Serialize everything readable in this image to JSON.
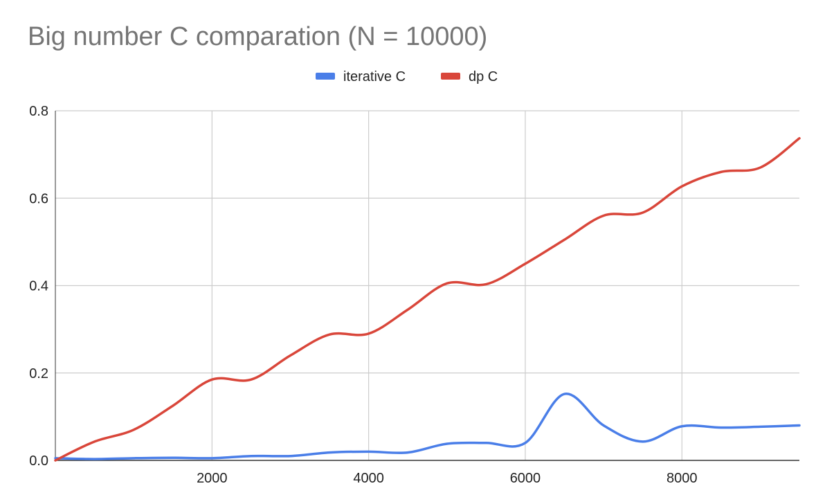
{
  "chart_data": {
    "type": "line",
    "title": "Big number C comparation (N = 10000)",
    "xlabel": "",
    "ylabel": "",
    "xlim": [
      0,
      9500
    ],
    "ylim": [
      0,
      0.8
    ],
    "x_ticks": [
      2000,
      4000,
      6000,
      8000
    ],
    "y_ticks": [
      0.0,
      0.2,
      0.4,
      0.6,
      0.8
    ],
    "x_tick_labels": [
      "2000",
      "4000",
      "6000",
      "8000"
    ],
    "y_tick_labels": [
      "0.0",
      "0.2",
      "0.4",
      "0.6",
      "0.8"
    ],
    "grid": true,
    "legend_position": "top-center",
    "x": [
      0,
      500,
      1000,
      1500,
      2000,
      2500,
      3000,
      3500,
      4000,
      4500,
      5000,
      5500,
      6000,
      6500,
      7000,
      7500,
      8000,
      8500,
      9000,
      9500
    ],
    "series": [
      {
        "name": "iterative C",
        "color": "#4a7ee8",
        "values": [
          0.005,
          0.003,
          0.005,
          0.006,
          0.005,
          0.01,
          0.01,
          0.018,
          0.02,
          0.018,
          0.038,
          0.04,
          0.04,
          0.152,
          0.08,
          0.043,
          0.078,
          0.075,
          0.077,
          0.08
        ]
      },
      {
        "name": "dp C",
        "color": "#d9463a",
        "values": [
          0.0,
          0.043,
          0.07,
          0.125,
          0.185,
          0.185,
          0.24,
          0.288,
          0.29,
          0.345,
          0.405,
          0.403,
          0.45,
          0.505,
          0.56,
          0.567,
          0.627,
          0.66,
          0.67,
          0.737
        ]
      }
    ]
  }
}
